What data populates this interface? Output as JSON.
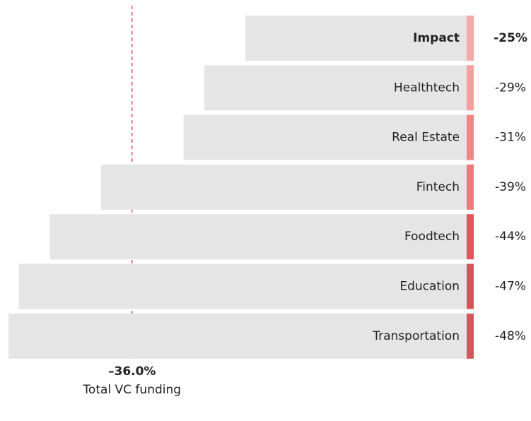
{
  "chart_data": {
    "type": "hbar",
    "categories": [
      "Impact",
      "Healthtech",
      "Real Estate",
      "Fintech",
      "Foodtech",
      "Education",
      "Transportation"
    ],
    "values": [
      -25,
      -29,
      -31,
      -39,
      -44,
      -47,
      -48
    ],
    "value_labels": [
      "-25%",
      "-29%",
      "-31%",
      "-39%",
      "-44%",
      "-47%",
      "-48%"
    ],
    "colors": [
      "#f7a9a9",
      "#f4a0a0",
      "#f08585",
      "#ee7b7b",
      "#e5545d",
      "#d9535b",
      "#d4575d"
    ],
    "bar_color": "#e5e5e5",
    "highlight": "Impact",
    "xlim": [
      -48,
      -3.5
    ],
    "reference": {
      "value": -36.0,
      "label": "–36.0%",
      "text": "Total VC funding",
      "color": "#e0505a"
    }
  }
}
